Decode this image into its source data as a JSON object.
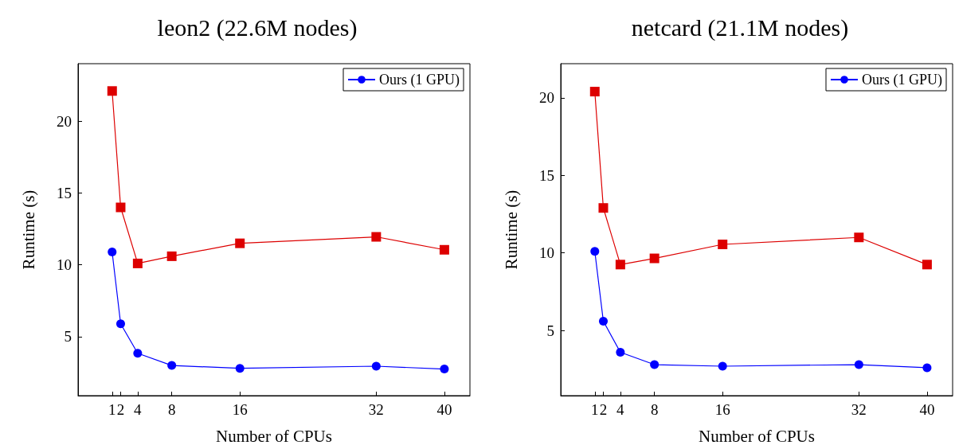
{
  "chart_data": [
    {
      "type": "line",
      "title": "leon2 (22.6M nodes)",
      "xlabel": "Number of CPUs",
      "ylabel": "Runtime (s)",
      "x": [
        1,
        2,
        4,
        8,
        16,
        32,
        40
      ],
      "xlim": [
        -3,
        43
      ],
      "xticks": [
        1,
        2,
        4,
        8,
        16,
        32,
        40
      ],
      "ylim": [
        0.9,
        24
      ],
      "yticks": [
        5,
        10,
        15,
        20
      ],
      "grid": false,
      "legend": "top right",
      "series": [
        {
          "name": "Ours (1 GPU)",
          "color": "#0000ff",
          "marker": "circle",
          "values": [
            10.9,
            5.9,
            3.85,
            3.0,
            2.8,
            2.95,
            2.75
          ]
        },
        {
          "color": "#dd0000",
          "marker": "square",
          "values": [
            22.1,
            14.0,
            10.1,
            10.6,
            11.5,
            11.95,
            11.05
          ]
        }
      ]
    },
    {
      "type": "line",
      "title": "netcard (21.1M nodes)",
      "xlabel": "Number of CPUs",
      "ylabel": "Runtime (s)",
      "x": [
        1,
        2,
        4,
        8,
        16,
        32,
        40
      ],
      "xlim": [
        -3,
        43
      ],
      "xticks": [
        1,
        2,
        4,
        8,
        16,
        32,
        40
      ],
      "ylim": [
        0.8,
        22.2
      ],
      "yticks": [
        5,
        10,
        15,
        20
      ],
      "grid": false,
      "legend": "top right",
      "series": [
        {
          "name": "Ours (1 GPU)",
          "color": "#0000ff",
          "marker": "circle",
          "values": [
            10.1,
            5.6,
            3.6,
            2.8,
            2.7,
            2.8,
            2.6
          ]
        },
        {
          "color": "#dd0000",
          "marker": "square",
          "values": [
            20.4,
            12.9,
            9.25,
            9.65,
            10.55,
            11.0,
            9.25
          ]
        }
      ]
    }
  ]
}
